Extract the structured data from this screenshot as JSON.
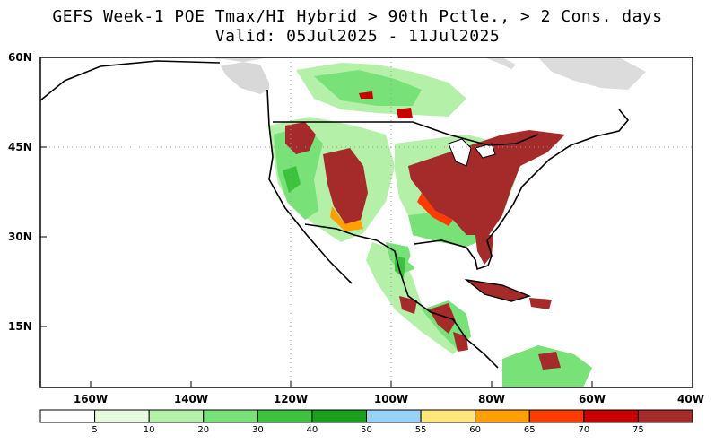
{
  "title": {
    "line1": "GEFS Week-1 POE Tmax/HI Hybrid > 90th Pctle., > 2 Cons. days",
    "line2": "Valid: 05Jul2025 - 11Jul2025"
  },
  "axes": {
    "lat_labels": [
      "60N",
      "45N",
      "30N",
      "15N"
    ],
    "lon_labels": [
      "160W",
      "140W",
      "120W",
      "100W",
      "80W",
      "60W",
      "40W"
    ]
  },
  "colorbar": {
    "colors": [
      "#ffffff",
      "#e6fae0",
      "#b4f0a8",
      "#78e178",
      "#3cc23c",
      "#18a018",
      "#96d2fa",
      "#ffe678",
      "#ffa000",
      "#ff3c00",
      "#c80000",
      "#a52a2a"
    ],
    "tick_labels": [
      "5",
      "10",
      "20",
      "30",
      "40",
      "50",
      "55",
      "60",
      "65",
      "70",
      "75"
    ]
  }
}
